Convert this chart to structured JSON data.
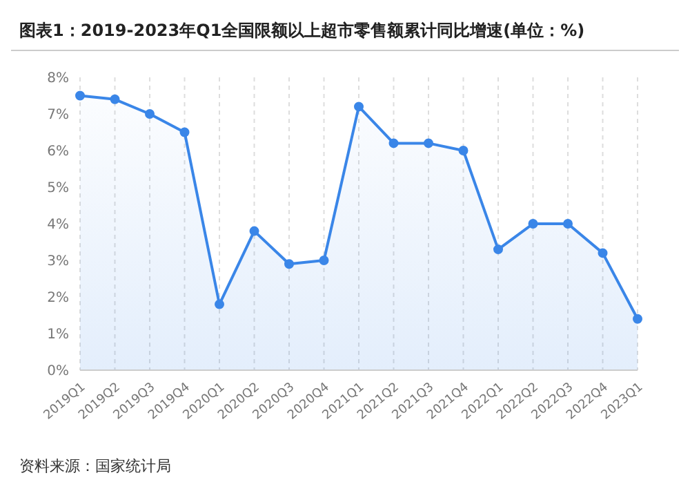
{
  "chart_data": {
    "type": "area",
    "title": "图表1：2019-2023年Q1全国限额以上超市零售额累计同比增速(单位：%)",
    "annotations": [
      "资料来源：国家统计局"
    ],
    "categories": [
      "2019Q1",
      "2019Q2",
      "2019Q3",
      "2019Q4",
      "2020Q1",
      "2020Q2",
      "2020Q3",
      "2020Q4",
      "2021Q1",
      "2021Q2",
      "2021Q3",
      "2021Q4",
      "2022Q1",
      "2022Q2",
      "2022Q3",
      "2022Q4",
      "2023Q1"
    ],
    "series": [
      {
        "color": "#3a86e8",
        "values": [
          7.5,
          7.4,
          7.0,
          6.5,
          1.8,
          3.8,
          2.9,
          3.0,
          7.2,
          6.2,
          6.2,
          6.0,
          3.3,
          4.0,
          4.0,
          3.2,
          1.4
        ]
      }
    ],
    "ylim": [
      0,
      8
    ],
    "yticks": [
      {
        "value": 0,
        "label": "0%"
      },
      {
        "value": 1,
        "label": "1%"
      },
      {
        "value": 2,
        "label": "2%"
      },
      {
        "value": 3,
        "label": "3%"
      },
      {
        "value": 4,
        "label": "4%"
      },
      {
        "value": 5,
        "label": "5%"
      },
      {
        "value": 6,
        "label": "6%"
      },
      {
        "value": 7,
        "label": "7%"
      },
      {
        "value": 8,
        "label": "8%"
      }
    ],
    "grid": "x",
    "marker": "circle",
    "line_style": "solid",
    "legend": false
  }
}
